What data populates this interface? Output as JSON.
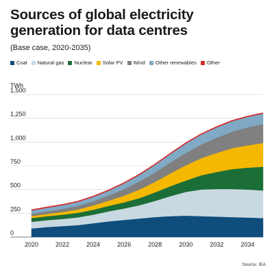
{
  "title": "Sources of global electricity generation for data centres",
  "subtitle": "(Base case, 2020-2035)",
  "source": "Source: IEA",
  "chart_data": {
    "type": "area",
    "stacked": true,
    "ylabel": "TWh",
    "ylim": [
      0,
      1500
    ],
    "xlim": [
      2020,
      2035
    ],
    "grid": true,
    "legend_position": "top",
    "x": [
      2020,
      2021,
      2022,
      2023,
      2024,
      2025,
      2026,
      2027,
      2028,
      2029,
      2030,
      2031,
      2032,
      2033,
      2034,
      2035
    ],
    "x_ticks": [
      2020,
      2022,
      2024,
      2026,
      2028,
      2030,
      2032,
      2034
    ],
    "x_tick_labels": [
      "2020",
      "2022",
      "2024",
      "2026",
      "2028",
      "2030",
      "2032",
      "2034"
    ],
    "y_ticks": [
      0,
      250,
      500,
      750,
      1000,
      1250,
      1500
    ],
    "y_tick_labels": [
      "0",
      "250",
      "500",
      "750",
      "1,000",
      "1,250",
      "1,500"
    ],
    "series": [
      {
        "name": "Coal",
        "color": "#0f4d7c",
        "values": [
          90,
          105,
          115,
          125,
          145,
          165,
          180,
          195,
          210,
          220,
          225,
          220,
          215,
          210,
          205,
          200
        ]
      },
      {
        "name": "Natural gas",
        "color": "#c9d9e2",
        "values": [
          70,
          72,
          75,
          82,
          90,
          105,
          120,
          140,
          170,
          210,
          250,
          280,
          290,
          295,
          295,
          290
        ]
      },
      {
        "name": "Nuclear",
        "color": "#1c6e37",
        "values": [
          40,
          42,
          45,
          48,
          52,
          58,
          65,
          75,
          90,
          105,
          120,
          150,
          180,
          210,
          230,
          250
        ]
      },
      {
        "name": "Solar PV",
        "color": "#f5b800",
        "values": [
          20,
          24,
          28,
          35,
          45,
          55,
          70,
          90,
          110,
          135,
          160,
          180,
          200,
          220,
          235,
          250
        ]
      },
      {
        "name": "Wind",
        "color": "#808080",
        "values": [
          25,
          28,
          32,
          38,
          45,
          55,
          70,
          85,
          100,
          115,
          130,
          145,
          160,
          175,
          190,
          200
        ]
      },
      {
        "name": "Other renewables",
        "color": "#7fa9c4",
        "values": [
          35,
          37,
          40,
          42,
          46,
          50,
          60,
          70,
          80,
          90,
          100,
          105,
          110,
          110,
          110,
          110
        ]
      },
      {
        "name": "Other",
        "color": "#d42a2a",
        "values": [
          5,
          5,
          5,
          5,
          5,
          5,
          5,
          5,
          5,
          5,
          5,
          5,
          5,
          5,
          5,
          5
        ]
      }
    ]
  }
}
